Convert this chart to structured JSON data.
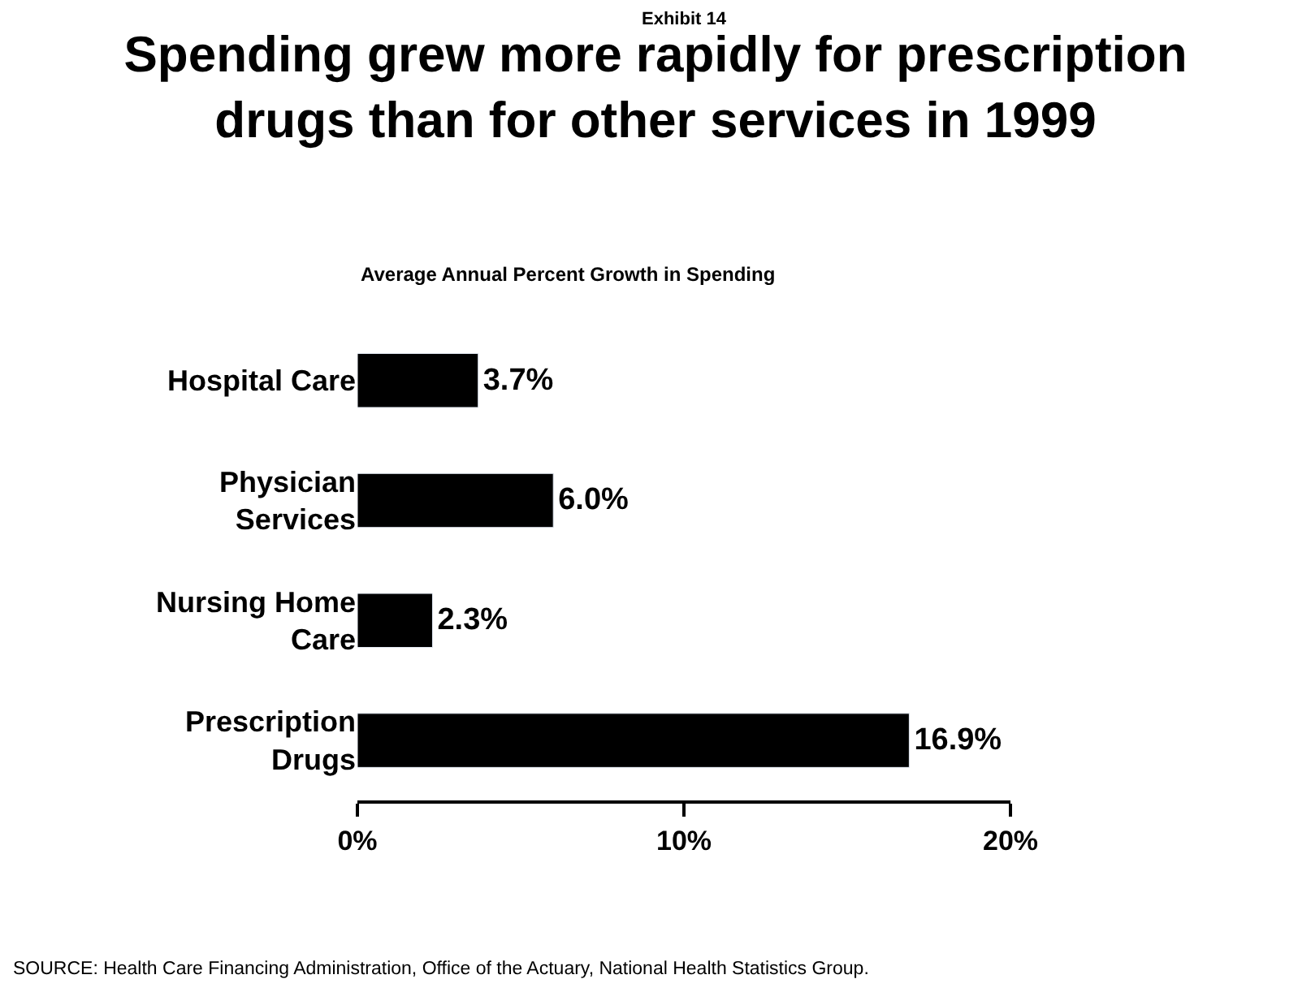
{
  "chart_data": {
    "type": "bar",
    "orientation": "horizontal",
    "title": "Spending grew more rapidly for prescription drugs than for other services in 1999",
    "xlabel": "Average Annual Percent Growth in Spending",
    "categories": [
      "Hospital Care",
      "Physician Services",
      "Nursing Home Care",
      "Prescription Drugs"
    ],
    "values": [
      3.7,
      6.0,
      2.3,
      16.9
    ],
    "value_labels": [
      "3.7%",
      "6.0%",
      "2.3%",
      "16.9%"
    ],
    "color": "#000000",
    "xlim": [
      0,
      20
    ],
    "xticks": [
      {
        "value": 0,
        "label": "0%"
      },
      {
        "value": 10,
        "label": "10%"
      },
      {
        "value": 20,
        "label": "20%"
      }
    ],
    "annotations": [
      "Exhibit 14",
      "SOURCE: Health Care Financing Administration, Office of the Actuary, National Health Statistics Group."
    ]
  }
}
